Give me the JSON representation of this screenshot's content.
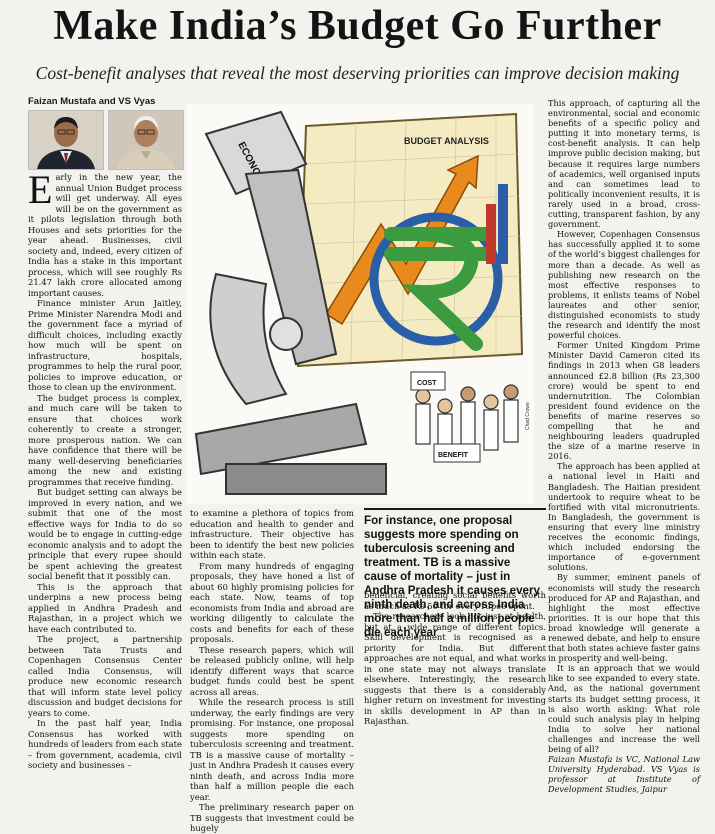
{
  "headline": "Make India’s Budget Go Further",
  "standfirst": "Cost-benefit analyses that reveal the most deserving priorities can improve decision making",
  "byline": "Faizan Mustafa and VS Vyas",
  "illustration": {
    "board_title": "BUDGET ANALYSIS",
    "book_title": "ECONOMIC RESEARCH",
    "sign_cost": "COST",
    "sign_benefit": "BENEFIT",
    "credit": "Chad Crowe",
    "colors": {
      "saffron": "#e98a1c",
      "green": "#3c9a3f",
      "blue": "#2a5fa8",
      "board": "#f4ebc2"
    }
  },
  "col1": {
    "dropcap": "E",
    "paragraphs": [
      "arly in the new year, the annual Union Budget process will get underway. All eyes will be on the government as it pilots legislation through both Houses and sets priorities for the year ahead. Businesses, civil society and, indeed, every citizen of India has a stake in this important process, which will see roughly Rs 21.47 lakh crore allocated among important causes.",
      "Finance minister Arun Jaitley, Prime Minister Narendra Modi and the government face a myriad of difficult choices, including exactly how much will be spent on infrastructure, hospitals, programmes to help the rural poor, policies to improve education, or those to clean up the environment.",
      "The budget process is complex, and much care will be taken to ensure that choices work coherently to create a stronger, more prosperous nation. We can have confidence that there will be many well-deserving beneficiaries among the new and existing programmes that receive funding.",
      "But budget setting can always be improved in every nation, and we submit that one of the most effective ways for India to do so would be to engage in cutting-edge economic analysis and to adopt the principle that every rupee should be spent achieving the greatest social benefit that it possibly can.",
      "This is the approach that underpins a new process being applied in Andhra Pradesh and Rajasthan, in a project which we have each contributed to.",
      "The project, a partnership between Tata Trusts and Copenhagen Consensus Center called India Consensus, will produce new economic research that will inform state level policy discussion and budget decisions for years to come.",
      "In the past half year, India Consensus has worked with hundreds of leaders from each state – from government, academia, civil society and businesses –"
    ]
  },
  "col2": {
    "paragraphs": [
      "to examine a plethora of topics from education and health to gender and infrastructure. Their objective has been to identify the best new policies within each state.",
      "From many hundreds of engaging proposals, they have honed a list of about 60 highly promising policies for each state. Now, teams of top economists from India and abroad are working diligently to calculate the costs and benefits for each of these proposals.",
      "These research papers, which will be released publicly online, will help identify different ways that scarce budget funds could best be spent across all areas.",
      "While the research process is still underway, the early findings are very promising. For instance, one proposal suggests more spending on tuberculosis screening and treatment. TB is a massive cause of mortality – just in Andhra Pradesh it causes every ninth death, and across India more than half a million people die each year.",
      "The preliminary research paper on TB suggests that investment could be hugely"
    ]
  },
  "pullquote": "For instance, one proposal suggests more spending on tuberculosis screening and treatment. TB is a massive cause of mortality – just in Andhra Pradesh it causes every ninth death, and across India more than half a million people die each year",
  "col3": {
    "paragraphs": [
      "beneficial, creating social benefits worth as much as Rs 50 for every rupee spent.",
      "The researchers look not just at health, but at a wide range of different topics. Skill development is recognised as a priority for India. But different approaches are not equal, and what works in one state may not always translate elsewhere. Interestingly, the research suggests that there is a considerably higher return on investment for investing in skills development in AP than in Rajasthan."
    ]
  },
  "col4": {
    "paragraphs": [
      "This approach, of capturing all the environmental, social and economic benefits of a specific policy and putting it into monetary terms, is cost-benefit analysis. It can help improve public decision making, but because it requires large numbers of academics, well organised inputs and can sometimes lead to politically inconvenient results, it is rarely used in a broad, cross-cutting, transparent fashion, by any government.",
      "However, Copenhagen Consensus has successfully applied it to some of the world’s biggest challenges for more than a decade. As well as publishing new research on the most effective responses to problems, it enlists teams of Nobel laureates and other senior, distinguished economists to study the research and identify the most powerful choices.",
      "Former United Kingdom Prime Minister David Cameron cited its findings in 2013 when G8 leaders announced £2.8 billion (Rs 23,300 crore) would be spent to end undernutrition. The Colombian president found evidence on the benefits of marine reserves so compelling that he and neighbouring leaders quadrupled the size of a marine reserve in 2016.",
      "The approach has been applied at a national level in Haiti and Bangladesh. The Haitian president undertook to require wheat to be fortified with vital micronutrients. In Bangladesh, the government is ensuring that every line ministry receives the economic findings, which included endorsing the importance of e-government solutions.",
      "By summer, eminent panels of economists will study the research produced for AP and Rajasthan, and highlight the most effective priorities. It is our hope that this broad knowledge will generate a renewed debate, and help to ensure that both states achieve faster gains in prosperity and well-being.",
      "It is an approach that we would like to see expanded to every state. And, as the national government starts its budget setting process, it is also worth asking: What role could such analysis play in helping India to solve her national challenges and increase the well being of all?"
    ],
    "author_note": "Faizan Mustafa is VC, National Law University Hyderabad. VS Vyas is professor at Institute of Development Studies, Jaipur"
  }
}
